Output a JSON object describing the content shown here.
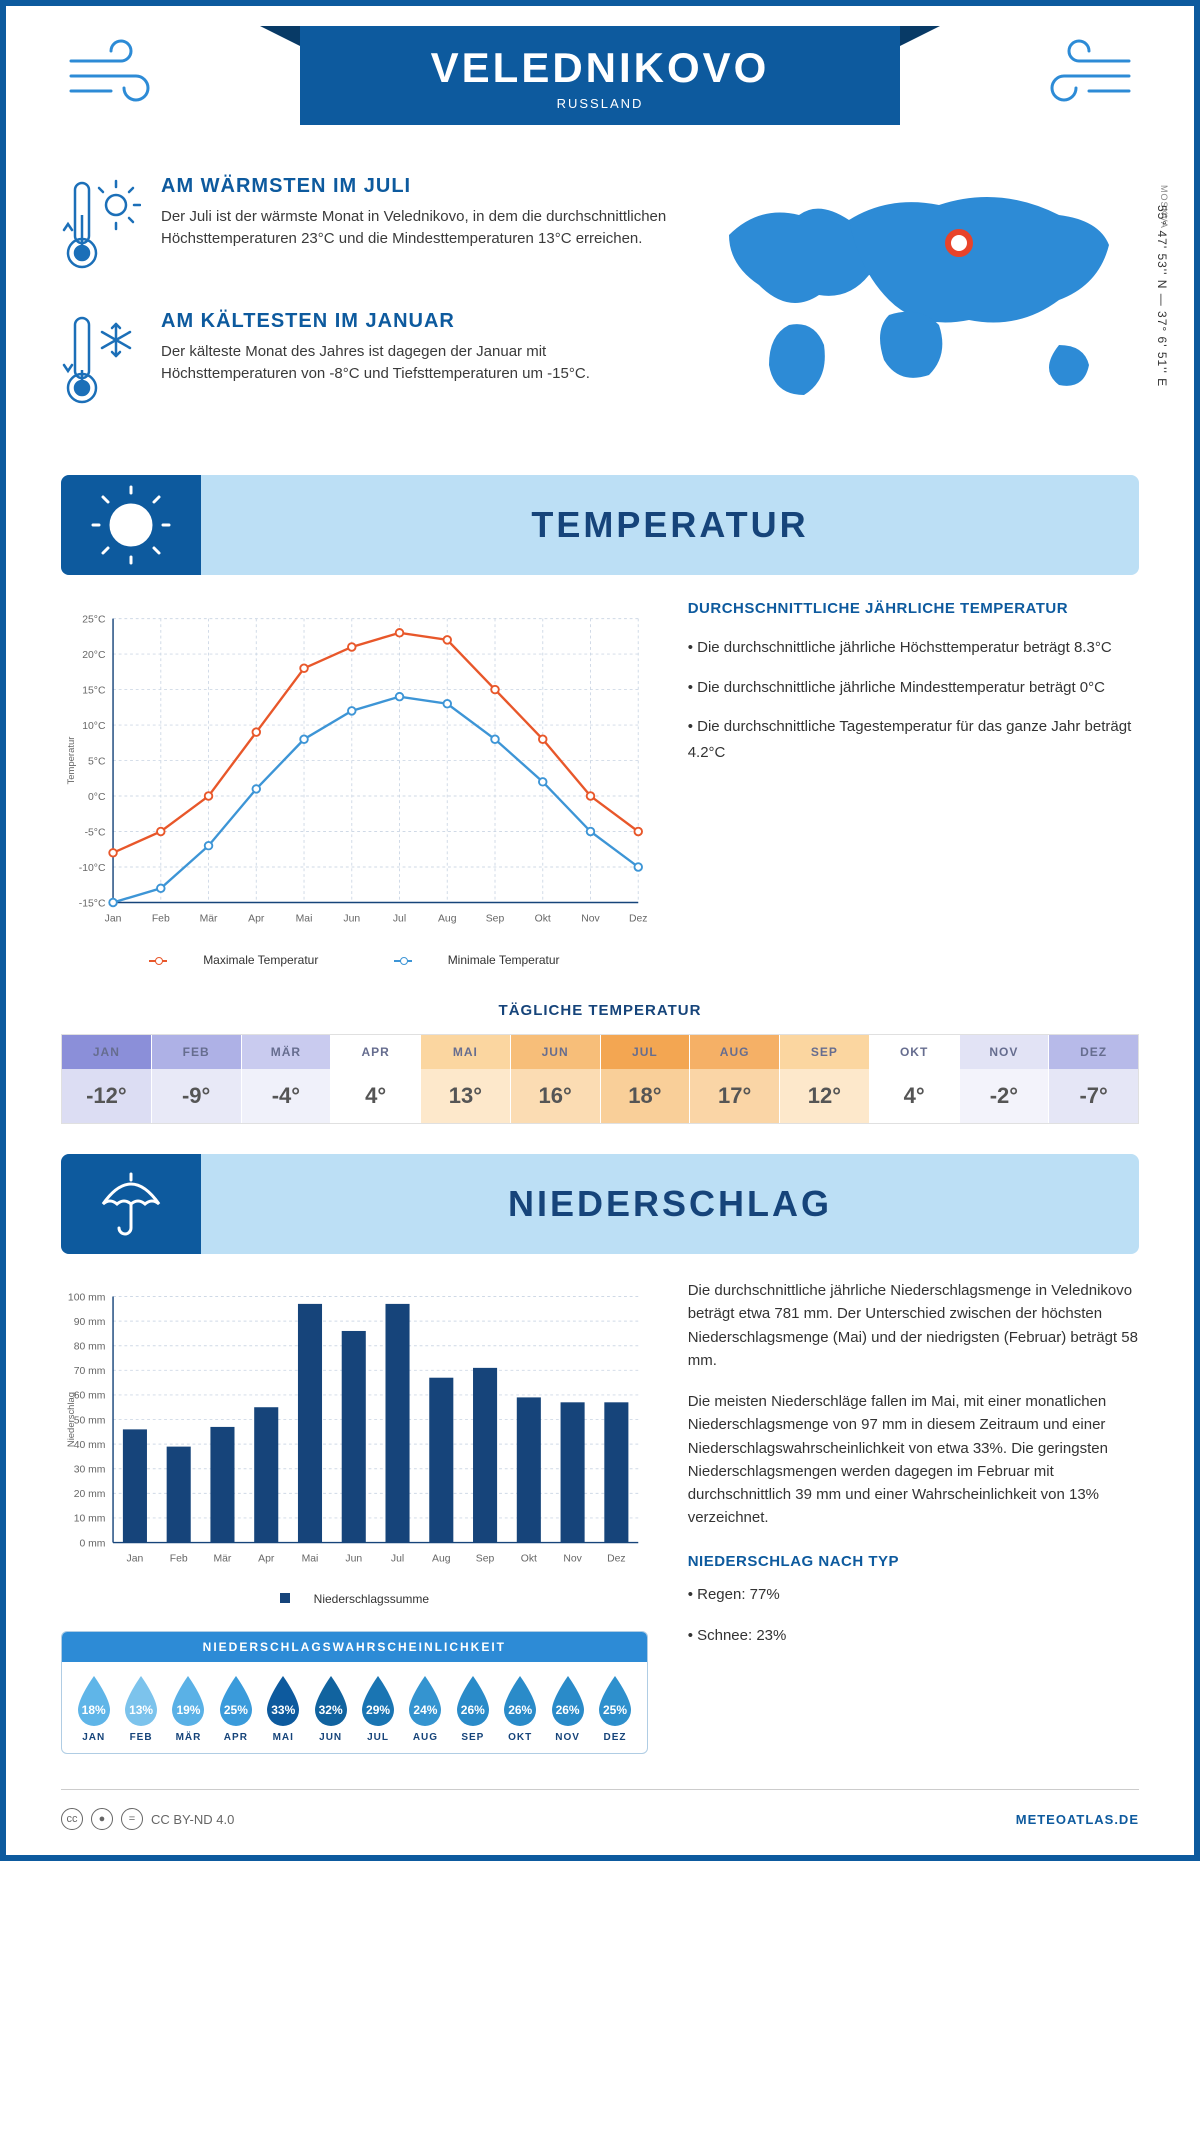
{
  "header": {
    "city": "VELEDNIKOVO",
    "country": "RUSSLAND"
  },
  "coords": "55° 47' 53'' N — 37° 6' 51'' E",
  "region": "MOSKVA",
  "warm": {
    "title": "AM WÄRMSTEN IM JULI",
    "text": "Der Juli ist der wärmste Monat in Velednikovo, in dem die durchschnittlichen Höchsttemperaturen 23°C und die Mindesttemperaturen 13°C erreichen."
  },
  "cold": {
    "title": "AM KÄLTESTEN IM JANUAR",
    "text": "Der kälteste Monat des Jahres ist dagegen der Januar mit Höchsttemperaturen von -8°C und Tiefsttemperaturen um -15°C."
  },
  "temp_section": {
    "title": "TEMPERATUR",
    "avg_title": "DURCHSCHNITTLICHE JÄHRLICHE TEMPERATUR",
    "bullet1": "• Die durchschnittliche jährliche Höchsttemperatur beträgt 8.3°C",
    "bullet2": "• Die durchschnittliche jährliche Mindesttemperatur beträgt 0°C",
    "bullet3": "• Die durchschnittliche Tagestemperatur für das ganze Jahr beträgt 4.2°C",
    "legend_max": "Maximale Temperatur",
    "legend_min": "Minimale Temperatur",
    "chart": {
      "months": [
        "Jan",
        "Feb",
        "Mär",
        "Apr",
        "Mai",
        "Jun",
        "Jul",
        "Aug",
        "Sep",
        "Okt",
        "Nov",
        "Dez"
      ],
      "max_series": [
        -8,
        -5,
        0,
        9,
        18,
        21,
        23,
        22,
        15,
        8,
        0,
        -5
      ],
      "min_series": [
        -15,
        -13,
        -7,
        1,
        8,
        12,
        14,
        13,
        8,
        2,
        -5,
        -10
      ],
      "ylim": [
        -15,
        25
      ],
      "ytick_step": 5,
      "max_color": "#e8572a",
      "min_color": "#3d95d6",
      "grid_color": "#cfd9e6",
      "axis_color": "#16447a",
      "ylabel": "Temperatur"
    }
  },
  "daily": {
    "title": "TÄGLICHE TEMPERATUR",
    "months": [
      "JAN",
      "FEB",
      "MÄR",
      "APR",
      "MAI",
      "JUN",
      "JUL",
      "AUG",
      "SEP",
      "OKT",
      "NOV",
      "DEZ"
    ],
    "values": [
      "-12°",
      "-9°",
      "-4°",
      "4°",
      "13°",
      "16°",
      "18°",
      "17°",
      "12°",
      "4°",
      "-2°",
      "-7°"
    ],
    "header_colors": [
      "#8b8fd9",
      "#aeb1e6",
      "#c9cbef",
      "#ffffff",
      "#fbd6a0",
      "#f7be79",
      "#f3a652",
      "#f5b066",
      "#fbd6a0",
      "#ffffff",
      "#e2e3f5",
      "#b7bae9"
    ],
    "value_colors": [
      "#dcddf3",
      "#e8e9f7",
      "#f0f1fa",
      "#ffffff",
      "#fde8cb",
      "#fbdcb3",
      "#f9cf99",
      "#fad5a6",
      "#fde8cb",
      "#ffffff",
      "#f3f3fb",
      "#e5e6f6"
    ],
    "text_color_header": "#666d8f",
    "text_color_value": "#555"
  },
  "precip_section": {
    "title": "NIEDERSCHLAG",
    "para1": "Die durchschnittliche jährliche Niederschlagsmenge in Velednikovo beträgt etwa 781 mm. Der Unterschied zwischen der höchsten Niederschlagsmenge (Mai) und der niedrigsten (Februar) beträgt 58 mm.",
    "para2": "Die meisten Niederschläge fallen im Mai, mit einer monatlichen Niederschlagsmenge von 97 mm in diesem Zeitraum und einer Niederschlagswahrscheinlichkeit von etwa 33%. Die geringsten Niederschlagsmengen werden dagegen im Februar mit durchschnittlich 39 mm und einer Wahrscheinlichkeit von 13% verzeichnet.",
    "type_title": "NIEDERSCHLAG NACH TYP",
    "type1": "• Regen: 77%",
    "type2": "• Schnee: 23%",
    "chart": {
      "months": [
        "Jan",
        "Feb",
        "Mär",
        "Apr",
        "Mai",
        "Jun",
        "Jul",
        "Aug",
        "Sep",
        "Okt",
        "Nov",
        "Dez"
      ],
      "values": [
        46,
        39,
        47,
        55,
        97,
        86,
        97,
        67,
        71,
        59,
        57,
        57
      ],
      "ylim": [
        0,
        100
      ],
      "ytick_step": 10,
      "bar_color": "#16447a",
      "grid_color": "#cfd9e6",
      "ylabel": "Niederschlag",
      "legend": "Niederschlagssumme"
    },
    "prob": {
      "title": "NIEDERSCHLAGSWAHRSCHEINLICHKEIT",
      "months": [
        "JAN",
        "FEB",
        "MÄR",
        "APR",
        "MAI",
        "JUN",
        "JUL",
        "AUG",
        "SEP",
        "OKT",
        "NOV",
        "DEZ"
      ],
      "values": [
        "18%",
        "13%",
        "19%",
        "25%",
        "33%",
        "32%",
        "29%",
        "24%",
        "26%",
        "26%",
        "26%",
        "25%"
      ],
      "colors": [
        "#5fb5e8",
        "#7cc3ec",
        "#5ab1e6",
        "#3a9bdb",
        "#0d5a9e",
        "#11639f",
        "#1a75b3",
        "#3494d0",
        "#2a8bc9",
        "#2a8bc9",
        "#2a8bc9",
        "#2e90cd"
      ]
    }
  },
  "footer": {
    "license": "CC BY-ND 4.0",
    "brand": "METEOATLAS.DE"
  }
}
